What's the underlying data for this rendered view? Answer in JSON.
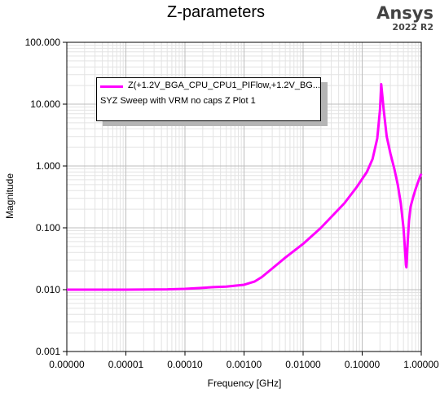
{
  "header": {
    "title": "Z-parameters",
    "brand": "Ansys",
    "version": "2022 R2"
  },
  "legend": {
    "series_label": "Z(+1.2V_BGA_CPU_CPU1_PIFlow,+1.2V_BG...",
    "caption": "SYZ Sweep with VRM no caps Z Plot 1"
  },
  "chart_data": {
    "type": "line",
    "title": "Z-parameters",
    "xlabel": "Frequency [GHz]",
    "ylabel": "Magnitude",
    "x_scale": "log",
    "y_scale": "log",
    "xlim": [
      1e-06,
      1
    ],
    "ylim": [
      0.001,
      100
    ],
    "grid": true,
    "legend_position": "top-left",
    "x_tick_labels": [
      "0.00000",
      "0.00001",
      "0.00010",
      "0.00100",
      "0.01000",
      "0.10000",
      "1.00000"
    ],
    "y_tick_labels": [
      "100.000",
      "10.000",
      "1.000",
      "0.100",
      "0.010",
      "0.001"
    ],
    "series": [
      {
        "name": "Z(+1.2V_BGA_CPU_CPU1_PIFlow,+1.2V_BG...",
        "color": "#ff00ff",
        "x": [
          1e-06,
          1e-05,
          5e-05,
          0.0001,
          0.0002,
          0.0003,
          0.0005,
          0.001,
          0.0015,
          0.002,
          0.003,
          0.005,
          0.01,
          0.02,
          0.03,
          0.05,
          0.08,
          0.12,
          0.15,
          0.18,
          0.2,
          0.21,
          0.23,
          0.26,
          0.3,
          0.35,
          0.4,
          0.45,
          0.5,
          0.53,
          0.55,
          0.56,
          0.57,
          0.59,
          0.62,
          0.66,
          0.72,
          0.8,
          0.9,
          1.0
        ],
        "y": [
          0.01,
          0.01,
          0.0101,
          0.0103,
          0.0107,
          0.011,
          0.0112,
          0.012,
          0.0135,
          0.016,
          0.022,
          0.033,
          0.055,
          0.1,
          0.15,
          0.25,
          0.45,
          0.8,
          1.3,
          2.8,
          8.0,
          21.0,
          8.5,
          3.0,
          1.6,
          0.9,
          0.5,
          0.25,
          0.1,
          0.045,
          0.025,
          0.023,
          0.03,
          0.06,
          0.13,
          0.22,
          0.3,
          0.42,
          0.58,
          0.75
        ]
      }
    ]
  }
}
